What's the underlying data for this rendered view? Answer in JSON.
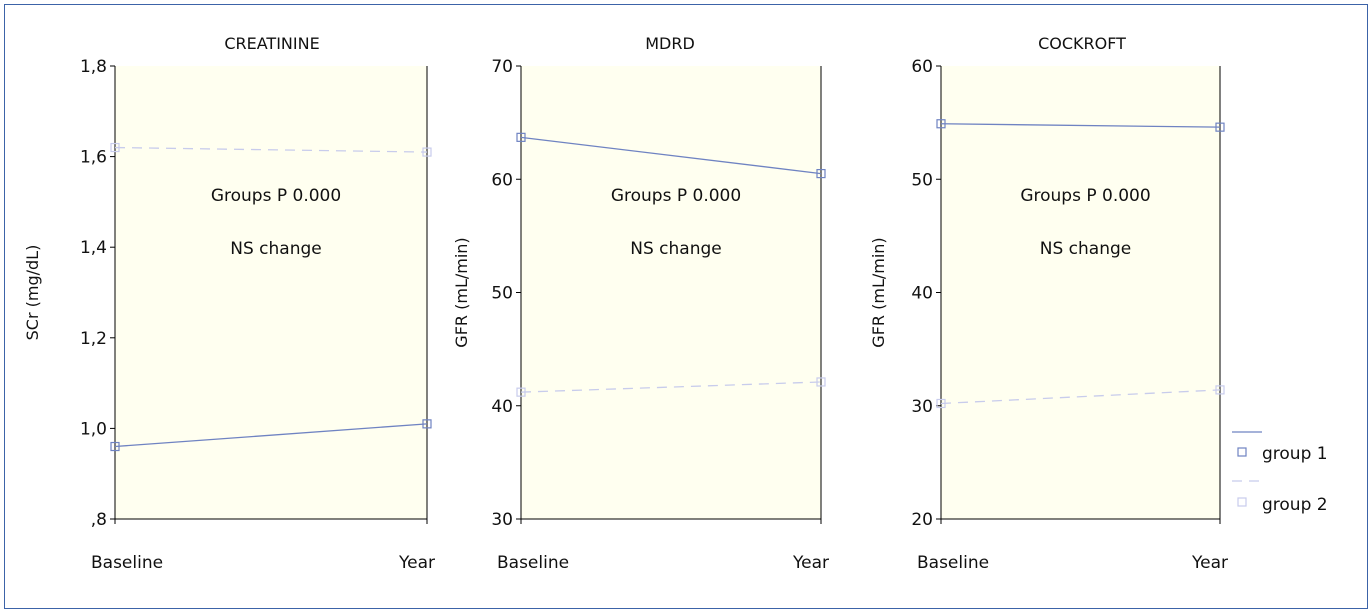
{
  "colors": {
    "plot_background": "#fffff0",
    "frame_border": "#3c63a8",
    "group1": "#6f83c2",
    "group2": "#c8ccec"
  },
  "legend": {
    "placement": "right",
    "entries": [
      {
        "label": "group 1",
        "line_style": "solid",
        "marker": "square"
      },
      {
        "label": "group 2",
        "line_style": "dashed",
        "marker": "square"
      }
    ]
  },
  "chart_data": [
    {
      "type": "line",
      "title": "CREATININE",
      "ylabel": "SCr (mg/dL)",
      "xlabel": "",
      "x": [
        "Baseline",
        "Year"
      ],
      "ylim": [
        0.8,
        1.8
      ],
      "yticks": [
        0.8,
        1.0,
        1.2,
        1.4,
        1.6,
        1.8
      ],
      "ytick_labels": [
        ",8",
        "1,0",
        "1,2",
        "1,4",
        "1,6",
        "1,8"
      ],
      "series": [
        {
          "name": "group 1",
          "values": [
            0.96,
            1.01
          ]
        },
        {
          "name": "group 2",
          "values": [
            1.62,
            1.61
          ]
        }
      ],
      "annotations": [
        "Groups P 0.000",
        "NS change"
      ],
      "grid": false
    },
    {
      "type": "line",
      "title": "MDRD",
      "ylabel": "GFR (mL/min)",
      "xlabel": "",
      "x": [
        "Baseline",
        "Year"
      ],
      "ylim": [
        30,
        70
      ],
      "yticks": [
        30,
        40,
        50,
        60,
        70
      ],
      "ytick_labels": [
        "30",
        "40",
        "50",
        "60",
        "70"
      ],
      "series": [
        {
          "name": "group 1",
          "values": [
            63.7,
            60.5
          ]
        },
        {
          "name": "group 2",
          "values": [
            41.2,
            42.1
          ]
        }
      ],
      "annotations": [
        "Groups P 0.000",
        "NS change"
      ],
      "grid": false
    },
    {
      "type": "line",
      "title": "COCKROFT",
      "ylabel": "GFR (mL/min)",
      "xlabel": "",
      "x": [
        "Baseline",
        "Year"
      ],
      "ylim": [
        20,
        60
      ],
      "yticks": [
        20,
        30,
        40,
        50,
        60
      ],
      "ytick_labels": [
        "20",
        "30",
        "40",
        "50",
        "60"
      ],
      "series": [
        {
          "name": "group 1",
          "values": [
            54.9,
            54.6
          ]
        },
        {
          "name": "group 2",
          "values": [
            30.2,
            31.4
          ]
        }
      ],
      "annotations": [
        "Groups P 0.000",
        "NS change"
      ],
      "grid": false
    }
  ]
}
